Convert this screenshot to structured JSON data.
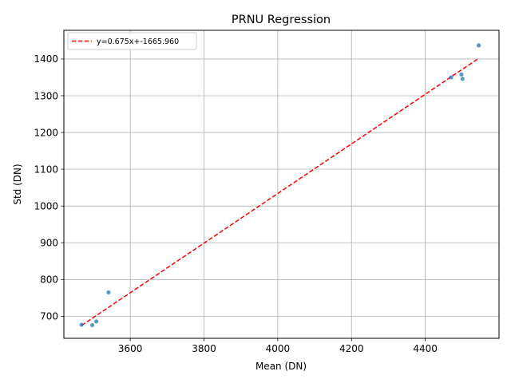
{
  "chart_data": {
    "type": "scatter",
    "title": "PRNU Regression",
    "xlabel": "Mean (DN)",
    "ylabel": "Std (DN)",
    "xlim": [
      3420,
      4600
    ],
    "ylim": [
      640,
      1478
    ],
    "xticks": [
      3600,
      3800,
      4000,
      4200,
      4400
    ],
    "yticks": [
      700,
      800,
      900,
      1000,
      1100,
      1200,
      1300,
      1400
    ],
    "grid": true,
    "legend_position": "top-left",
    "series": [
      {
        "kind": "scatter",
        "color": "#1f77b4",
        "x": [
          3468,
          3497,
          3508,
          3541,
          4470,
          4498,
          4501,
          4545
        ],
        "y": [
          677,
          676,
          686,
          765,
          1350,
          1358,
          1346,
          1437
        ]
      },
      {
        "kind": "line",
        "name": "y=0.675x+-1665.960",
        "color": "#ff0000",
        "style": "dashed",
        "slope": 0.675,
        "intercept": -1665.96,
        "x_range": [
          3468,
          4545
        ]
      }
    ]
  }
}
